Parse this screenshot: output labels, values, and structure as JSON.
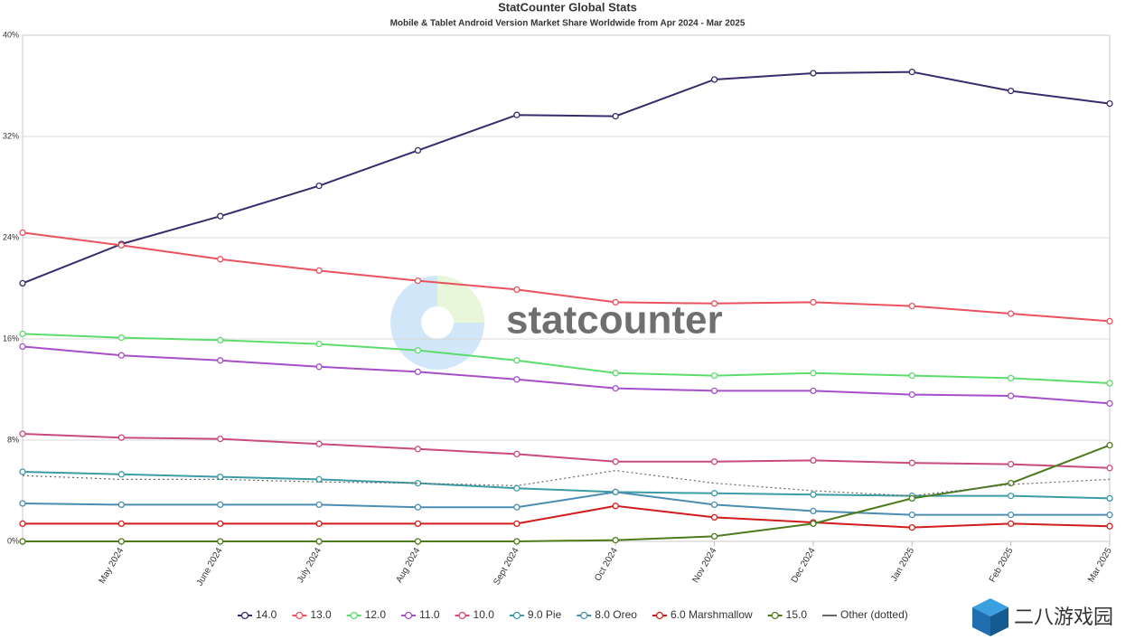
{
  "chart_data": {
    "type": "line",
    "title": "StatCounter Global Stats",
    "subtitle": "Mobile & Tablet Android Version Market Share Worldwide from Apr 2024 - Mar 2025",
    "watermark": "statcounter",
    "corner_watermark": "二八游戏园",
    "categories": [
      null,
      "May 2024",
      "June 2024",
      "July 2024",
      "Aug 2024",
      "Sept 2024",
      "Oct 2024",
      "Nov 2024",
      "Dec 2024",
      "Jan 2025",
      "Feb 2025",
      "Mar 2025"
    ],
    "ylim": [
      0,
      40
    ],
    "yticks": [
      {
        "value": 0,
        "label": "0%"
      },
      {
        "value": 8,
        "label": "8%"
      },
      {
        "value": 16,
        "label": "16%"
      },
      {
        "value": 24,
        "label": "24%"
      },
      {
        "value": 32,
        "label": "32%"
      },
      {
        "value": 40,
        "label": "40%"
      }
    ],
    "grid": true,
    "legend": "bottom",
    "series": [
      {
        "name": "14.0",
        "color": "#3b2a6b",
        "values": [
          20.4,
          23.5,
          25.7,
          28.1,
          30.9,
          33.7,
          33.6,
          36.5,
          37.0,
          37.1,
          35.6,
          34.6
        ]
      },
      {
        "name": "13.0",
        "color": "#e9525e",
        "values": [
          24.4,
          23.4,
          22.3,
          21.4,
          20.6,
          19.9,
          18.9,
          18.8,
          18.9,
          18.6,
          18.0,
          17.4
        ]
      },
      {
        "name": "12.0",
        "color": "#5cdc6c",
        "values": [
          16.4,
          16.1,
          15.9,
          15.6,
          15.1,
          14.3,
          13.3,
          13.1,
          13.3,
          13.1,
          12.9,
          12.5
        ]
      },
      {
        "name": "11.0",
        "color": "#a550c8",
        "values": [
          15.4,
          14.7,
          14.3,
          13.8,
          13.4,
          12.8,
          12.1,
          11.9,
          11.9,
          11.6,
          11.5,
          10.9
        ]
      },
      {
        "name": "10.0",
        "color": "#c94a7c",
        "values": [
          8.5,
          8.2,
          8.1,
          7.7,
          7.3,
          6.9,
          6.3,
          6.3,
          6.4,
          6.2,
          6.1,
          5.8
        ]
      },
      {
        "name": "9.0 Pie",
        "color": "#3b9ca6",
        "values": [
          5.5,
          5.3,
          5.1,
          4.9,
          4.6,
          4.2,
          3.9,
          3.8,
          3.7,
          3.6,
          3.6,
          3.4
        ]
      },
      {
        "name": "8.0 Oreo",
        "color": "#4a8db2",
        "values": [
          3.0,
          2.9,
          2.9,
          2.9,
          2.7,
          2.7,
          3.9,
          2.9,
          2.4,
          2.1,
          2.1,
          2.1
        ]
      },
      {
        "name": "6.0 Marshmallow",
        "color": "#d11c1c",
        "values": [
          1.4,
          1.4,
          1.4,
          1.4,
          1.4,
          1.4,
          2.8,
          1.9,
          1.5,
          1.1,
          1.4,
          1.2
        ]
      },
      {
        "name": "15.0",
        "color": "#4c7b1c",
        "values": [
          0,
          0,
          0,
          0,
          0,
          0,
          0.1,
          0.4,
          1.4,
          3.4,
          4.6,
          7.6
        ]
      },
      {
        "name": "Other (dotted)",
        "color": "#666666",
        "dotted": true,
        "values": [
          5.2,
          4.9,
          4.9,
          4.7,
          4.6,
          4.4,
          5.6,
          4.6,
          4.0,
          3.6,
          4.5,
          4.9
        ]
      }
    ]
  }
}
